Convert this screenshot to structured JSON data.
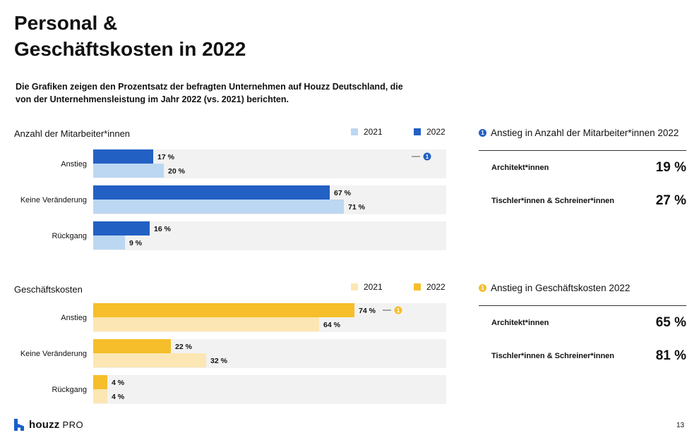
{
  "title_line1": "Personal &",
  "title_line2": "Geschäftskosten in 2022",
  "subtitle": "Die Grafiken zeigen den Prozentsatz der befragten Unternehmen auf Houzz Deutschland, die von der Unternehmensleistung im Jahr 2022 (vs. 2021) berichten.",
  "chart_data": [
    {
      "type": "bar",
      "title": "Anzahl der Mitarbeiter*innen",
      "categories": [
        "Anstieg",
        "Keine Veränderung",
        "Rückgang"
      ],
      "series": [
        {
          "name": "2022",
          "values": [
            17,
            67,
            16
          ],
          "color": "#2260c4"
        },
        {
          "name": "2021",
          "values": [
            20,
            71,
            9
          ],
          "color": "#bcd7f1"
        }
      ],
      "legend": [
        "2021",
        "2022"
      ],
      "unit": "%",
      "xlim": [
        0,
        100
      ],
      "callout": {
        "category": "Anstieg",
        "badge": "1"
      },
      "row_background": "#f2f2f2"
    },
    {
      "type": "bar",
      "title": "Geschäftskosten",
      "categories": [
        "Anstieg",
        "Keine Veränderung",
        "Rückgang"
      ],
      "series": [
        {
          "name": "2022",
          "values": [
            74,
            22,
            4
          ],
          "color": "#f6be2a"
        },
        {
          "name": "2021",
          "values": [
            64,
            32,
            4
          ],
          "color": "#fce6b3"
        }
      ],
      "legend": [
        "2021",
        "2022"
      ],
      "unit": "%",
      "xlim": [
        0,
        100
      ],
      "callout": {
        "category": "Anstieg",
        "badge": "1"
      },
      "row_background": "#f2f2f2"
    }
  ],
  "side_panels": [
    {
      "badge": "1",
      "badge_color": "#2260c4",
      "heading": "Anstieg in Anzahl der Mitarbeiter*innen 2022",
      "rows": [
        {
          "label": "Architekt*innen",
          "value": "19 %"
        },
        {
          "label": "Tischler*innen & Schreiner*innen",
          "value": "27 %"
        }
      ]
    },
    {
      "badge": "1",
      "badge_color": "#f6be2a",
      "heading": "Anstieg in Geschäftskosten 2022",
      "rows": [
        {
          "label": "Architekt*innen",
          "value": "65 %"
        },
        {
          "label": "Tischler*innen & Schreiner*innen",
          "value": "81 %"
        }
      ]
    }
  ],
  "footer": {
    "brand": "houzz",
    "brand_suffix": "PRO",
    "page_number": "13"
  }
}
